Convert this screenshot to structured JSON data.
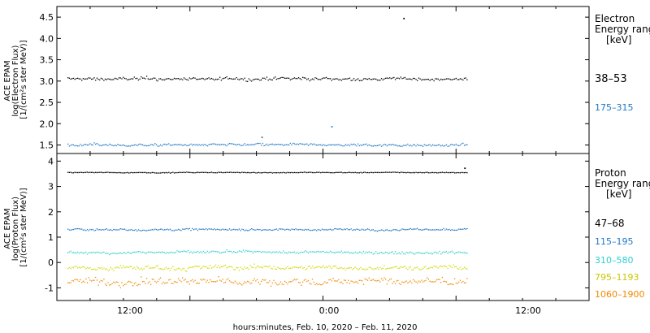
{
  "xlabel": "hours:minutes, Feb. 10, 2020 – Feb. 11, 2020",
  "x_ticks": [
    "12:00",
    "0:00",
    "12:00"
  ],
  "chart_data": [
    {
      "type": "scatter",
      "id": "electron",
      "ylabel_lines": [
        "ACE EPAM",
        "log(Electron Flux)",
        "[1/(cm²s ster MeV)]"
      ],
      "legend_lines": [
        "Electron",
        "Energy ranges",
        "[keV]"
      ],
      "ylim": [
        1.3,
        4.75
      ],
      "y_ticks": [
        "1.5",
        "2.0",
        "2.5",
        "3.0",
        "3.5",
        "4.0",
        "4.5"
      ],
      "y_tick_values": [
        1.5,
        2.0,
        2.5,
        3.0,
        3.5,
        4.0,
        4.5
      ],
      "x_range_hours": [
        0,
        48
      ],
      "data_span_hours": [
        1,
        37
      ],
      "series": [
        {
          "name": "38–53",
          "color": "#000000",
          "level": 3.05,
          "jitter": 0.05,
          "outliers": [
            {
              "x": 31.3,
              "y": 4.47
            }
          ]
        },
        {
          "name": "175–315",
          "color": "#1f77c4",
          "level": 1.5,
          "jitter": 0.04,
          "outliers": [
            {
              "x": 24.8,
              "y": 1.93
            },
            {
              "x": 18.5,
              "y": 1.68
            }
          ]
        }
      ]
    },
    {
      "type": "scatter",
      "id": "proton",
      "ylabel_lines": [
        "ACE EPAM",
        "log(Proton Flux)",
        "[1/(cm²s ster MeV)]"
      ],
      "legend_lines": [
        "Proton",
        "Energy ranges",
        "[keV]"
      ],
      "ylim": [
        -1.5,
        4.3
      ],
      "y_ticks": [
        "-1",
        "0",
        "1",
        "2",
        "3",
        "4"
      ],
      "y_tick_values": [
        -1,
        0,
        1,
        2,
        3,
        4
      ],
      "x_range_hours": [
        0,
        48
      ],
      "data_span_hours": [
        1,
        37
      ],
      "series": [
        {
          "name": "47–68",
          "color": "#000000",
          "level": 3.55,
          "jitter": 0.02,
          "outliers": [
            {
              "x": 36.8,
              "y": 3.72
            }
          ]
        },
        {
          "name": "115–195",
          "color": "#1f77c4",
          "level": 1.3,
          "jitter": 0.05,
          "outliers": []
        },
        {
          "name": "310–580",
          "color": "#2ecfcf",
          "level": 0.4,
          "jitter": 0.07,
          "outliers": []
        },
        {
          "name": "795–1193",
          "color": "#d6d600",
          "level": -0.2,
          "jitter": 0.12,
          "outliers": []
        },
        {
          "name": "1060–1900",
          "color": "#f08a00",
          "level": -0.75,
          "jitter": 0.2,
          "outliers": []
        }
      ]
    }
  ]
}
